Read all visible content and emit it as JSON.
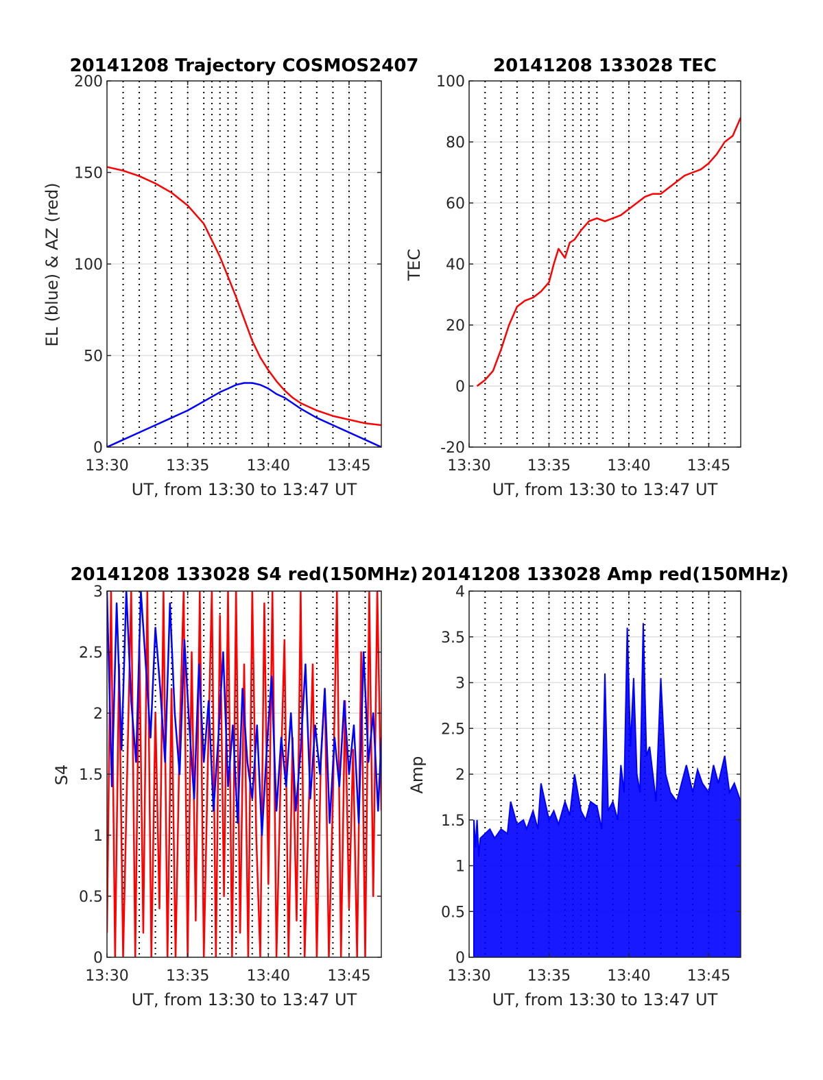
{
  "figure": {
    "background": "#ffffff"
  },
  "chart_data": [
    {
      "type": "line",
      "title": "20141208 Trajectory COSMOS2407",
      "xlabel": "UT, from 13:30 to 13:47 UT",
      "ylabel": "EL (blue) & AZ (red)",
      "xlim": [
        0,
        17
      ],
      "ylim": [
        0,
        200
      ],
      "xticks": [
        0,
        5,
        10,
        15
      ],
      "xticklabels": [
        "13:30",
        "13:35",
        "13:40",
        "13:45"
      ],
      "yticks": [
        0,
        50,
        100,
        150,
        200
      ],
      "yticklabels": [
        "0",
        "50",
        "100",
        "150",
        "200"
      ],
      "dotted_vlines": [
        1,
        2,
        3,
        4,
        5,
        6,
        6.5,
        7,
        7.5,
        8,
        9,
        10,
        11,
        12,
        13,
        14,
        15,
        16
      ],
      "grid": true,
      "series": [
        {
          "color": "#ff0000",
          "x": [
            0,
            1,
            2,
            3,
            4,
            5,
            6,
            7,
            7.5,
            8,
            8.5,
            9,
            9.5,
            10,
            10.5,
            11,
            11.5,
            12,
            13,
            14,
            15,
            16,
            17
          ],
          "values": [
            153,
            151,
            148,
            144,
            139,
            132,
            122,
            104,
            93,
            82,
            70,
            58,
            49,
            42,
            36,
            31,
            27,
            24,
            20,
            17,
            15,
            13,
            12
          ]
        },
        {
          "color": "#0000ff",
          "x": [
            0,
            1,
            2,
            3,
            4,
            5,
            6,
            7,
            7.5,
            8,
            8.5,
            9,
            9.5,
            10,
            10.5,
            11,
            11.5,
            12,
            13,
            14,
            15,
            16,
            17
          ],
          "values": [
            0,
            4,
            8,
            12,
            16,
            20,
            25,
            30,
            32,
            34,
            35,
            35,
            34,
            32,
            29,
            27,
            24,
            21,
            16,
            12,
            8,
            4,
            0
          ]
        }
      ]
    },
    {
      "type": "line",
      "title": "20141208 133028 TEC",
      "xlabel": "UT, from 13:30 to 13:47 UT",
      "ylabel": "TEC",
      "xlim": [
        0,
        17
      ],
      "ylim": [
        -20,
        100
      ],
      "xticks": [
        0,
        5,
        10,
        15
      ],
      "xticklabels": [
        "13:30",
        "13:35",
        "13:40",
        "13:45"
      ],
      "yticks": [
        -20,
        0,
        20,
        40,
        60,
        80,
        100
      ],
      "yticklabels": [
        "-20",
        "0",
        "20",
        "40",
        "60",
        "80",
        "100"
      ],
      "dotted_vlines": [
        1,
        2,
        3,
        4,
        5,
        6,
        6.5,
        7,
        7.5,
        8,
        9,
        10,
        11,
        12,
        13,
        14,
        15,
        16
      ],
      "grid": true,
      "series": [
        {
          "color": "#ff0000",
          "x": [
            0.5,
            1,
            1.5,
            2,
            2.5,
            3,
            3.5,
            4,
            4.5,
            5,
            5.3,
            5.6,
            6,
            6.3,
            6.6,
            7,
            7.5,
            8,
            8.5,
            9,
            9.5,
            10,
            10.5,
            11,
            11.5,
            12,
            12.5,
            13,
            13.5,
            14,
            14.5,
            15,
            15.5,
            16,
            16.5,
            17
          ],
          "values": [
            0,
            2,
            5,
            12,
            20,
            26,
            28,
            29,
            31,
            34,
            40,
            45,
            42,
            47,
            48,
            51,
            54,
            55,
            54,
            55,
            56,
            58,
            60,
            62,
            63,
            63,
            65,
            67,
            69,
            70,
            71,
            73,
            76,
            80,
            82,
            88
          ]
        }
      ]
    },
    {
      "type": "line",
      "title": "20141208 133028 S4 red(150MHz)",
      "xlabel": "UT, from 13:30 to 13:47 UT",
      "ylabel": "S4",
      "xlim": [
        0,
        17
      ],
      "ylim": [
        0,
        3
      ],
      "xticks": [
        0,
        5,
        10,
        15
      ],
      "xticklabels": [
        "13:30",
        "13:35",
        "13:40",
        "13:45"
      ],
      "yticks": [
        0,
        0.5,
        1,
        1.5,
        2,
        2.5,
        3
      ],
      "yticklabels": [
        "0",
        "0.5",
        "1",
        "1.5",
        "2",
        "2.5",
        "3"
      ],
      "dotted_vlines": [
        1,
        2,
        3,
        4,
        5,
        6,
        6.5,
        7,
        7.5,
        8,
        9,
        10,
        11,
        12,
        13,
        14,
        15,
        16
      ],
      "grid": true,
      "series": [
        {
          "color": "#ff0000",
          "x": [
            0,
            0.25,
            0.5,
            0.75,
            1,
            1.25,
            1.5,
            1.75,
            2,
            2.25,
            2.5,
            2.75,
            3,
            3.25,
            3.5,
            3.75,
            4,
            4.25,
            4.5,
            4.75,
            5,
            5.25,
            5.5,
            5.75,
            6,
            6.25,
            6.5,
            6.75,
            7,
            7.25,
            7.5,
            7.75,
            8,
            8.25,
            8.5,
            8.75,
            9,
            9.25,
            9.5,
            9.75,
            10,
            10.25,
            10.5,
            10.75,
            11,
            11.25,
            11.5,
            11.75,
            12,
            12.25,
            12.5,
            12.75,
            13,
            13.25,
            13.5,
            13.75,
            14,
            14.25,
            14.5,
            14.75,
            15,
            15.25,
            15.5,
            15.75,
            16,
            16.25,
            16.5,
            16.75,
            17
          ],
          "values": [
            0.2,
            3,
            0,
            2.4,
            0,
            1.5,
            3,
            0,
            2.6,
            0.2,
            3,
            0,
            2,
            0.4,
            3,
            0,
            2.2,
            0,
            1.8,
            3,
            0,
            2.5,
            0.3,
            3,
            0,
            1.6,
            3,
            0,
            2.8,
            0.5,
            3,
            0,
            3,
            0.2,
            2.4,
            0,
            3,
            1,
            0,
            2.9,
            0.6,
            3,
            0,
            1.4,
            2.6,
            0,
            1.8,
            0.3,
            3,
            0,
            1.2,
            2.4,
            0,
            1.6,
            2.2,
            0,
            1.3,
            3,
            0,
            2.1,
            0.4,
            1.7,
            0,
            2.5,
            0,
            3,
            0.5,
            3,
            1.2
          ]
        },
        {
          "color": "#0000ff",
          "x": [
            0,
            0.3,
            0.6,
            0.9,
            1.2,
            1.5,
            1.8,
            2.1,
            2.4,
            2.7,
            3,
            3.3,
            3.6,
            3.9,
            4.2,
            4.5,
            4.8,
            5.1,
            5.4,
            5.7,
            6,
            6.3,
            6.6,
            6.9,
            7.2,
            7.5,
            7.8,
            8.1,
            8.4,
            8.7,
            9,
            9.3,
            9.6,
            9.9,
            10.2,
            10.5,
            10.8,
            11.1,
            11.4,
            11.7,
            12,
            12.3,
            12.6,
            12.9,
            13.2,
            13.5,
            13.8,
            14.1,
            14.4,
            14.7,
            15,
            15.3,
            15.6,
            15.9,
            16.2,
            16.5,
            16.8,
            17
          ],
          "values": [
            3,
            1.4,
            2.9,
            1.7,
            3,
            2.1,
            1.6,
            3,
            2.4,
            1.8,
            2.7,
            2.2,
            1.6,
            2.9,
            2,
            1.5,
            2.6,
            1.9,
            1.3,
            2.4,
            1.6,
            2.1,
            1.2,
            1.8,
            2.5,
            1.4,
            1.9,
            1.1,
            2.2,
            1.6,
            1.3,
            1.9,
            1,
            1.7,
            2.3,
            1.2,
            1.8,
            1.4,
            2,
            1.2,
            1.7,
            2.4,
            1.3,
            1.9,
            1.5,
            2.2,
            1.1,
            1.8,
            1.4,
            2.1,
            1.5,
            1.9,
            1.1,
            2.5,
            1.6,
            2,
            1.2,
            1.8
          ]
        }
      ]
    },
    {
      "type": "line",
      "title": "20141208 133028 Amp red(150MHz)",
      "xlabel": "UT, from 13:30 to 13:47 UT",
      "ylabel": "Amp",
      "xlim": [
        0,
        17
      ],
      "ylim": [
        0,
        4
      ],
      "xticks": [
        0,
        5,
        10,
        15
      ],
      "xticklabels": [
        "13:30",
        "13:35",
        "13:40",
        "13:45"
      ],
      "yticks": [
        0,
        0.5,
        1,
        1.5,
        2,
        2.5,
        3,
        3.5,
        4
      ],
      "yticklabels": [
        "0",
        "0.5",
        "1",
        "1.5",
        "2",
        "2.5",
        "3",
        "3.5",
        "4"
      ],
      "dotted_vlines": [
        1,
        2,
        3,
        4,
        5,
        6,
        6.5,
        7,
        7.5,
        8,
        9,
        10,
        11,
        12,
        13,
        14,
        15,
        16
      ],
      "grid": true,
      "series": [
        {
          "color": "#0000ff",
          "fill_from_zero": true,
          "x": [
            0.3,
            0.4,
            0.5,
            0.6,
            0.7,
            1,
            1.3,
            1.6,
            2,
            2.4,
            2.6,
            3,
            3.4,
            3.6,
            4,
            4.3,
            4.5,
            5,
            5.3,
            5.6,
            6,
            6.3,
            6.6,
            7,
            7.3,
            7.6,
            8,
            8.3,
            8.5,
            8.7,
            9,
            9.3,
            9.5,
            9.7,
            9.9,
            10.1,
            10.3,
            10.5,
            10.7,
            10.9,
            11.1,
            11.3,
            11.5,
            11.7,
            12,
            12.3,
            12.6,
            13,
            13.3,
            13.6,
            14,
            14.3,
            14.6,
            15,
            15.3,
            15.6,
            16,
            16.3,
            16.6,
            17
          ],
          "values": [
            1.5,
            1.2,
            1.5,
            1.1,
            1.3,
            1.35,
            1.4,
            1.3,
            1.4,
            1.35,
            1.7,
            1.45,
            1.5,
            1.4,
            1.6,
            1.4,
            1.9,
            1.5,
            1.6,
            1.45,
            1.7,
            1.55,
            2,
            1.6,
            1.5,
            1.7,
            1.65,
            1.4,
            3.1,
            1.6,
            1.7,
            1.5,
            2.1,
            1.8,
            3.6,
            2.3,
            3.05,
            2,
            1.8,
            3.65,
            2.2,
            2.3,
            2,
            1.7,
            3.05,
            2,
            1.8,
            1.7,
            1.9,
            2.1,
            1.8,
            2.05,
            1.9,
            1.8,
            2.1,
            1.9,
            2.2,
            1.8,
            1.9,
            1.7
          ]
        }
      ]
    }
  ]
}
